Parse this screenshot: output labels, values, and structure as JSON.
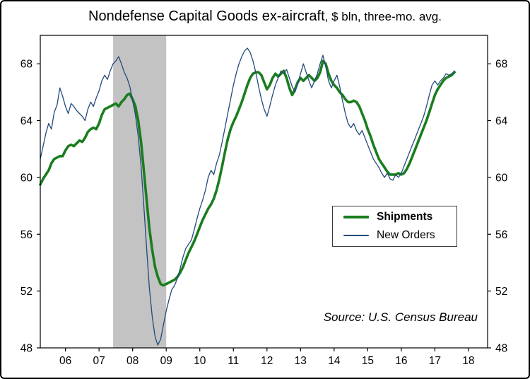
{
  "title": {
    "main": "Nondefense Capital Goods ex-aircraft",
    "suffix": ", $ bln, three-mo. avg."
  },
  "source": "Source: U.S. Census Bureau",
  "legend": {
    "items": [
      {
        "label": "Shipments"
      },
      {
        "label": "New Orders"
      }
    ]
  },
  "chart_data": {
    "type": "line",
    "title": "Nondefense Capital Goods ex-aircraft, $ bln, three-mo. avg.",
    "xlabel": "",
    "ylabel": "$ bln",
    "xlim": [
      2005.75,
      2019.07
    ],
    "ylim": [
      48,
      70
    ],
    "y_ticks": [
      48,
      52,
      56,
      60,
      64,
      68
    ],
    "x_ticks": [
      2006.5,
      2007.5,
      2008.5,
      2009.5,
      2010.5,
      2011.5,
      2012.5,
      2013.5,
      2014.5,
      2015.5,
      2016.5,
      2017.5,
      2018.5
    ],
    "x_tick_labels": [
      "06",
      "07",
      "08",
      "09",
      "10",
      "11",
      "12",
      "13",
      "14",
      "15",
      "16",
      "17",
      "18"
    ],
    "grid": false,
    "legend_position": "center-right",
    "x_start": 2005.75,
    "x_step": "monthly",
    "recession_band": {
      "x0": 2007.92,
      "x1": 2009.5,
      "color": "#c3c3c3"
    },
    "series": [
      {
        "name": "Shipments",
        "color": "#1a7d1e",
        "width": 3.6,
        "values": [
          59.5,
          59.9,
          60.2,
          60.5,
          61.0,
          61.3,
          61.4,
          61.5,
          61.5,
          61.9,
          62.2,
          62.3,
          62.2,
          62.4,
          62.6,
          62.5,
          62.8,
          63.2,
          63.4,
          63.5,
          63.4,
          63.8,
          64.4,
          64.8,
          64.9,
          65.0,
          65.1,
          65.2,
          65.0,
          65.3,
          65.5,
          65.8,
          65.9,
          65.5,
          65.0,
          64.0,
          62.5,
          60.5,
          58.4,
          56.4,
          54.9,
          53.7,
          53.0,
          52.5,
          52.4,
          52.5,
          52.6,
          52.7,
          52.8,
          53.0,
          53.3,
          53.7,
          54.2,
          54.7,
          55.1,
          55.5,
          56.0,
          56.5,
          57.0,
          57.4,
          57.8,
          58.1,
          58.5,
          59.1,
          59.9,
          60.8,
          61.8,
          62.7,
          63.4,
          63.9,
          64.3,
          64.8,
          65.3,
          65.9,
          66.5,
          67.0,
          67.3,
          67.4,
          67.4,
          67.2,
          66.7,
          66.2,
          66.5,
          67.0,
          67.3,
          67.1,
          67.3,
          67.5,
          67.0,
          66.3,
          65.8,
          66.2,
          66.7,
          67.0,
          66.8,
          67.0,
          67.2,
          67.0,
          66.8,
          67.0,
          67.4,
          68.2,
          68.0,
          67.3,
          66.8,
          66.5,
          66.3,
          66.0,
          65.8,
          65.5,
          65.3,
          65.3,
          65.4,
          65.3,
          65.0,
          64.5,
          64.0,
          63.4,
          62.9,
          62.3,
          61.8,
          61.3,
          61.0,
          60.7,
          60.4,
          60.2,
          60.2,
          60.2,
          60.3,
          60.2,
          60.3,
          60.6,
          61.0,
          61.5,
          62.0,
          62.5,
          63.0,
          63.5,
          64.0,
          64.6,
          65.2,
          65.8,
          66.2,
          66.5,
          66.8,
          67.0,
          67.1,
          67.2,
          67.4
        ]
      },
      {
        "name": "New Orders",
        "color": "#234a7c",
        "width": 1.3,
        "values": [
          61.3,
          62.2,
          63.1,
          63.8,
          63.4,
          64.6,
          65.1,
          66.3,
          65.7,
          65.0,
          64.5,
          65.2,
          65.0,
          64.7,
          64.5,
          64.3,
          64.0,
          64.8,
          65.3,
          65.0,
          65.6,
          66.1,
          66.8,
          67.2,
          66.9,
          67.5,
          68.0,
          68.2,
          68.5,
          68.0,
          67.4,
          67.0,
          66.4,
          65.4,
          64.4,
          62.9,
          60.8,
          58.0,
          55.0,
          52.2,
          50.2,
          48.8,
          48.2,
          48.6,
          49.6,
          50.6,
          51.4,
          52.1,
          52.4,
          52.9,
          53.6,
          54.4,
          55.0,
          55.3,
          55.6,
          56.3,
          57.1,
          57.8,
          58.4,
          59.1,
          60.0,
          60.5,
          60.2,
          61.0,
          61.6,
          62.5,
          63.5,
          64.5,
          65.5,
          66.5,
          67.3,
          68.0,
          68.5,
          68.9,
          69.1,
          68.8,
          68.2,
          67.4,
          66.4,
          65.5,
          64.8,
          64.3,
          65.0,
          65.8,
          66.5,
          67.0,
          67.5,
          67.3,
          67.6,
          67.0,
          66.4,
          66.0,
          66.6,
          67.3,
          68.0,
          67.4,
          66.8,
          66.3,
          66.8,
          67.3,
          68.0,
          68.6,
          67.8,
          66.8,
          66.3,
          66.8,
          67.2,
          66.4,
          65.4,
          64.5,
          63.8,
          63.5,
          63.8,
          63.3,
          63.0,
          63.3,
          62.8,
          62.3,
          61.8,
          61.3,
          61.0,
          60.7,
          60.3,
          60.0,
          60.3,
          59.9,
          59.8,
          60.2,
          60.0,
          60.3,
          60.8,
          61.3,
          61.8,
          62.3,
          62.8,
          63.3,
          63.8,
          64.3,
          65.0,
          65.8,
          66.5,
          66.8,
          66.5,
          66.8,
          67.0,
          67.3,
          67.2,
          67.3,
          67.5
        ]
      }
    ]
  }
}
